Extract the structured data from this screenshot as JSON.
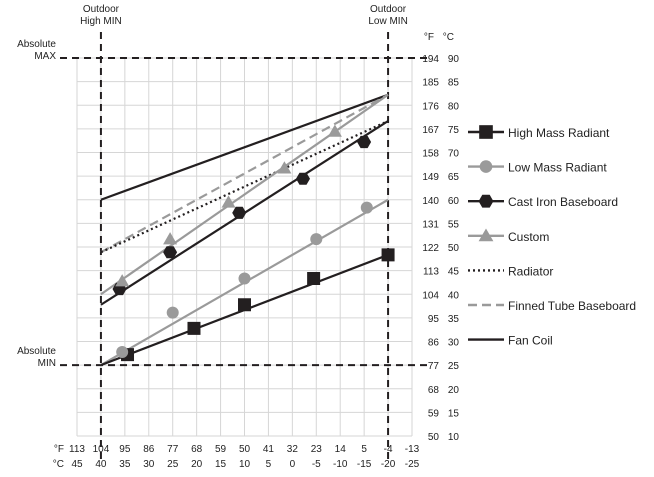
{
  "chart_data": {
    "type": "line",
    "title": "",
    "x_axis": {
      "unit_labels": [
        "°F",
        "°C"
      ],
      "direction": "descending",
      "range_f": [
        113,
        -13
      ],
      "ticks_f": [
        "113",
        "104",
        "95",
        "86",
        "77",
        "68",
        "59",
        "50",
        "41",
        "32",
        "23",
        "14",
        "5",
        "-4",
        "-13"
      ],
      "ticks_c": [
        "45",
        "40",
        "35",
        "30",
        "25",
        "20",
        "15",
        "10",
        "5",
        "0",
        "-5",
        "-10",
        "-15",
        "-20",
        "-25"
      ]
    },
    "y_axis": {
      "unit_labels": [
        "°F",
        "°C"
      ],
      "position": "right",
      "range_f": [
        50,
        194
      ],
      "ticks_f": [
        "194",
        "185",
        "176",
        "167",
        "158",
        "149",
        "140",
        "131",
        "122",
        "113",
        "104",
        "95",
        "86",
        "77",
        "68",
        "59",
        "50"
      ],
      "ticks_c": [
        "90",
        "85",
        "80",
        "75",
        "70",
        "65",
        "60",
        "55",
        "50",
        "45",
        "40",
        "35",
        "30",
        "25",
        "20",
        "15",
        "10"
      ]
    },
    "grid": true,
    "reference_lines": {
      "outdoor_high_min": {
        "x": 104,
        "label": [
          "Outdoor",
          "High MIN"
        ]
      },
      "outdoor_low_min": {
        "x": -4,
        "label": [
          "Outdoor",
          "Low MIN"
        ]
      },
      "absolute_max": {
        "y": 194,
        "label": [
          "Absolute",
          "MAX"
        ]
      },
      "absolute_min": {
        "y": 77,
        "label": [
          "Absolute",
          "MIN"
        ]
      }
    },
    "legend_position": "right",
    "series": [
      {
        "name": "High Mass Radiant",
        "color": "#231f20",
        "style": "solid",
        "marker": "square",
        "line": [
          [
            104,
            77
          ],
          [
            -4,
            119
          ]
        ],
        "markers": [
          [
            94,
            81
          ],
          [
            69,
            91
          ],
          [
            50,
            100
          ],
          [
            24,
            110
          ],
          [
            -4,
            119
          ]
        ]
      },
      {
        "name": "Low Mass Radiant",
        "color": "#9a9a9a",
        "style": "solid",
        "marker": "circle",
        "line": [
          [
            104,
            77
          ],
          [
            -4,
            140
          ]
        ],
        "markers": [
          [
            96,
            82
          ],
          [
            77,
            97
          ],
          [
            50,
            110
          ],
          [
            23,
            125
          ],
          [
            4,
            137
          ]
        ]
      },
      {
        "name": "Cast Iron Baseboard",
        "color": "#231f20",
        "style": "solid",
        "marker": "hexagon",
        "line": [
          [
            104,
            100
          ],
          [
            -4,
            170
          ]
        ],
        "markers": [
          [
            97,
            106
          ],
          [
            78,
            120
          ],
          [
            52,
            135
          ],
          [
            28,
            148
          ],
          [
            5,
            162
          ]
        ]
      },
      {
        "name": "Custom",
        "color": "#9a9a9a",
        "style": "solid",
        "marker": "triangle",
        "line": [
          [
            104,
            104
          ],
          [
            -4,
            180
          ]
        ],
        "markers": [
          [
            96,
            109
          ],
          [
            78,
            125
          ],
          [
            56,
            139
          ],
          [
            35,
            152
          ],
          [
            16,
            166
          ]
        ]
      },
      {
        "name": "Radiator",
        "color": "#231f20",
        "style": "dotted",
        "marker": "none",
        "line": [
          [
            104,
            120
          ],
          [
            -4,
            170
          ]
        ]
      },
      {
        "name": "Finned Tube Baseboard",
        "color": "#9a9a9a",
        "style": "dashed",
        "marker": "none",
        "line": [
          [
            104,
            120
          ],
          [
            -4,
            180
          ]
        ]
      },
      {
        "name": "Fan Coil",
        "color": "#231f20",
        "style": "solid",
        "marker": "none",
        "line": [
          [
            104,
            140
          ],
          [
            -4,
            180
          ]
        ]
      }
    ]
  }
}
